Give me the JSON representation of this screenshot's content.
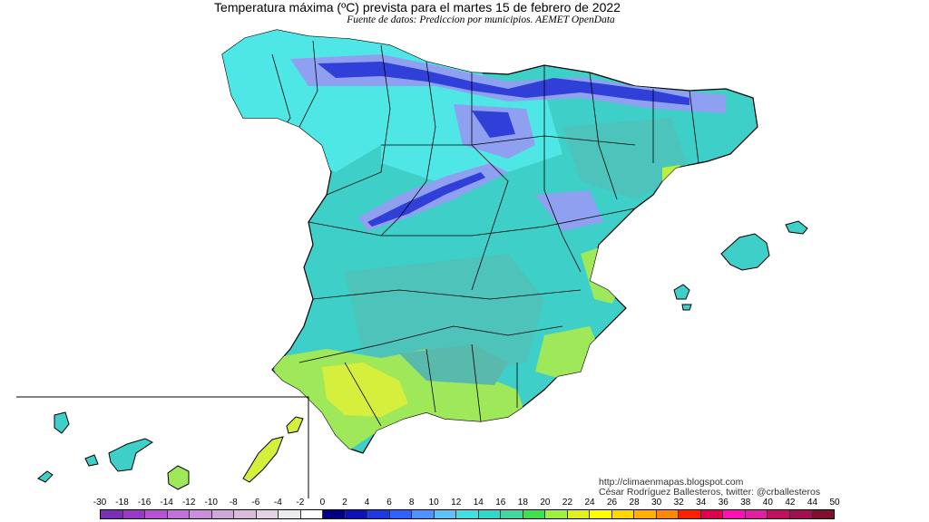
{
  "header": {
    "title": "Temperatura máxima (ºC) prevista para el martes 15 de febrero de 2022",
    "subtitle": "Fuente de datos: Prediccion por municipios. AEMET OpenData"
  },
  "credits": {
    "line1": "http://climaenmapas.blogspot.com",
    "line2": "César Rodríguez Ballesteros, twitter: @crballesteros"
  },
  "legend": {
    "ticks": [
      "-30",
      "-18",
      "-16",
      "-14",
      "-12",
      "-10",
      "-8",
      "-6",
      "-4",
      "-2",
      "0",
      "2",
      "4",
      "6",
      "8",
      "10",
      "12",
      "14",
      "16",
      "18",
      "20",
      "22",
      "24",
      "26",
      "28",
      "30",
      "32",
      "34",
      "36",
      "38",
      "40",
      "42",
      "44",
      "50"
    ],
    "colors": [
      "#7a2fb5",
      "#9b39c7",
      "#b553d2",
      "#c271d9",
      "#c98fd9",
      "#cfa7d8",
      "#d9bcd9",
      "#e2d2e4",
      "#ecebee",
      "#ffffff",
      "#000080",
      "#1010b8",
      "#2038e0",
      "#3060ff",
      "#5090ff",
      "#60c0f8",
      "#40e0e0",
      "#30d8c8",
      "#40d8a0",
      "#40e050",
      "#a0f040",
      "#e0f020",
      "#ffff00",
      "#ffd800",
      "#ffb000",
      "#ff8800",
      "#ff2000",
      "#e00050",
      "#ff10b0",
      "#e020a0",
      "#c01060",
      "#a01050",
      "#801030"
    ]
  },
  "map": {
    "colors": {
      "sea": "#ffffff",
      "base": "#3ecfc8",
      "cyan": "#4fe6e6",
      "teal": "#5ab9ad",
      "blue": "#2f3fd8",
      "lightblue": "#8fa0f0",
      "green": "#9ee85a",
      "yellowgreen": "#d6ee3c",
      "lime": "#b8f040"
    }
  }
}
